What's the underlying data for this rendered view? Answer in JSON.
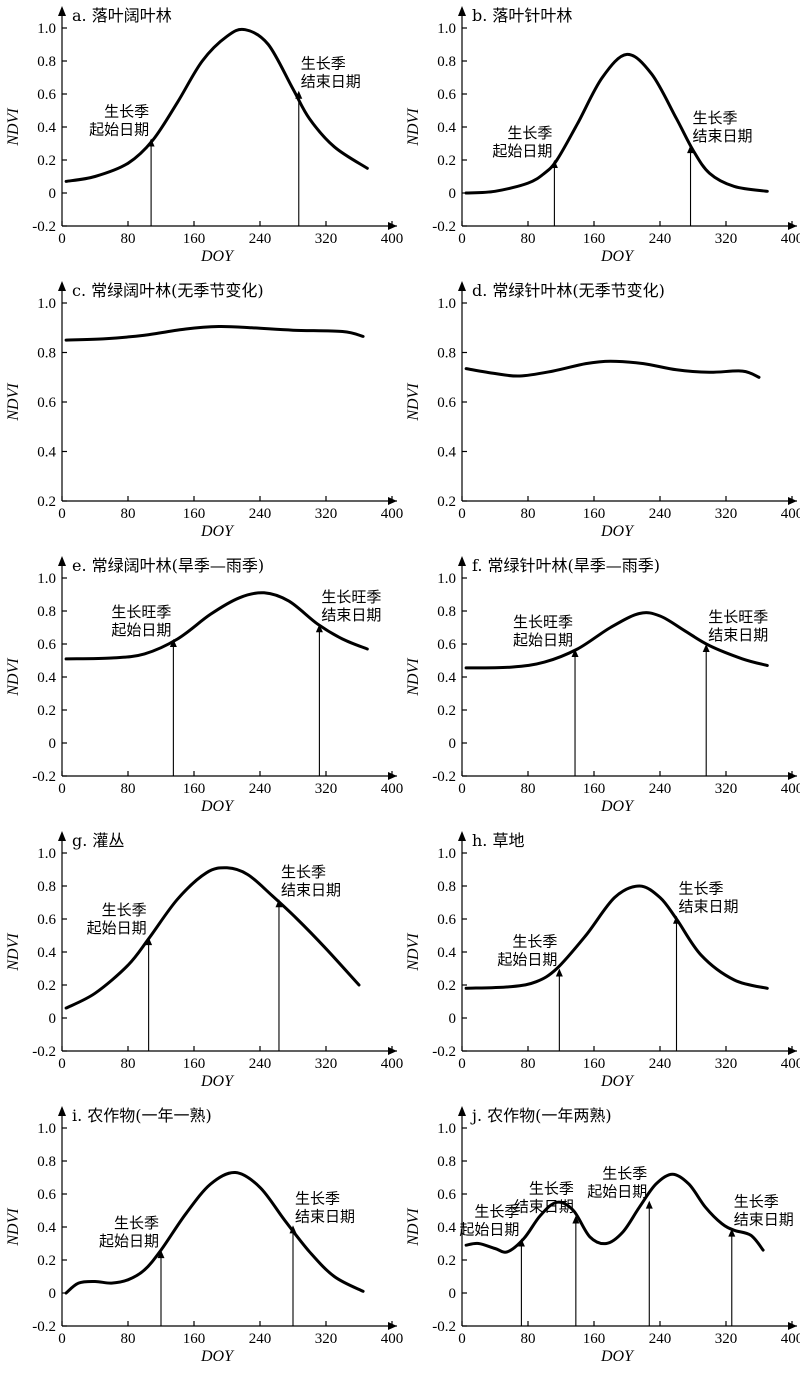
{
  "chart_data": [
    {
      "type": "line",
      "title": "a. 落叶阔叶林",
      "xlabel": "DOY",
      "ylabel": "NDVI",
      "xlim": [
        0,
        400
      ],
      "ylim": [
        -0.2,
        1.0
      ],
      "xticks": [
        0,
        80,
        160,
        240,
        320,
        400
      ],
      "yticks": [
        -0.2,
        0,
        0.2,
        0.4,
        0.6,
        0.8,
        1.0
      ],
      "series": [
        {
          "x": [
            5,
            40,
            80,
            110,
            140,
            170,
            200,
            222,
            250,
            280,
            300,
            330,
            370
          ],
          "y": [
            0.07,
            0.1,
            0.18,
            0.32,
            0.55,
            0.8,
            0.95,
            0.99,
            0.9,
            0.63,
            0.45,
            0.28,
            0.15
          ]
        }
      ],
      "annotations": [
        {
          "text": [
            "生长季",
            "起始日期"
          ],
          "x": 108,
          "y": 0.33,
          "side": "left"
        },
        {
          "text": [
            "生长季",
            "结束日期"
          ],
          "x": 287,
          "y": 0.62,
          "side": "right"
        }
      ]
    },
    {
      "type": "line",
      "title": "b. 落叶针叶林",
      "xlabel": "DOY",
      "ylabel": "NDVI",
      "xlim": [
        0,
        400
      ],
      "ylim": [
        -0.2,
        1.0
      ],
      "xticks": [
        0,
        80,
        160,
        240,
        320,
        400
      ],
      "yticks": [
        -0.2,
        0,
        0.2,
        0.4,
        0.6,
        0.8,
        1.0
      ],
      "series": [
        {
          "x": [
            5,
            40,
            80,
            100,
            115,
            140,
            170,
            200,
            230,
            260,
            280,
            300,
            330,
            370
          ],
          "y": [
            0.0,
            0.01,
            0.06,
            0.12,
            0.2,
            0.42,
            0.7,
            0.84,
            0.72,
            0.45,
            0.26,
            0.12,
            0.04,
            0.01
          ]
        }
      ],
      "annotations": [
        {
          "text": [
            "生长季",
            "起始日期"
          ],
          "x": 112,
          "y": 0.2,
          "side": "left"
        },
        {
          "text": [
            "生长季",
            "结束日期"
          ],
          "x": 277,
          "y": 0.29,
          "side": "right"
        }
      ]
    },
    {
      "type": "line",
      "title": "c. 常绿阔叶林(无季节变化)",
      "xlabel": "DOY",
      "ylabel": "NDVI",
      "xlim": [
        0,
        400
      ],
      "ylim": [
        0.2,
        1.0
      ],
      "xticks": [
        0,
        80,
        160,
        240,
        320,
        400
      ],
      "yticks": [
        0.2,
        0.4,
        0.6,
        0.8,
        1.0
      ],
      "series": [
        {
          "x": [
            5,
            50,
            100,
            150,
            190,
            230,
            280,
            340,
            365
          ],
          "y": [
            0.85,
            0.855,
            0.87,
            0.895,
            0.905,
            0.9,
            0.89,
            0.885,
            0.865
          ]
        }
      ],
      "annotations": []
    },
    {
      "type": "line",
      "title": "d. 常绿针叶林(无季节变化)",
      "xlabel": "DOY",
      "ylabel": "NDVI",
      "xlim": [
        0,
        400
      ],
      "ylim": [
        0.2,
        1.0
      ],
      "xticks": [
        0,
        80,
        160,
        240,
        320,
        400
      ],
      "yticks": [
        0.2,
        0.4,
        0.6,
        0.8,
        1.0
      ],
      "series": [
        {
          "x": [
            5,
            40,
            70,
            110,
            150,
            180,
            220,
            260,
            300,
            340,
            360
          ],
          "y": [
            0.735,
            0.715,
            0.705,
            0.725,
            0.755,
            0.765,
            0.755,
            0.73,
            0.72,
            0.725,
            0.7
          ]
        }
      ],
      "annotations": []
    },
    {
      "type": "line",
      "title": "e. 常绿阔叶林(旱季—雨季)",
      "xlabel": "DOY",
      "ylabel": "NDVI",
      "xlim": [
        0,
        400
      ],
      "ylim": [
        -0.2,
        1.0
      ],
      "xticks": [
        0,
        80,
        160,
        240,
        320,
        400
      ],
      "yticks": [
        -0.2,
        0,
        0.2,
        0.4,
        0.6,
        0.8,
        1.0
      ],
      "series": [
        {
          "x": [
            5,
            60,
            100,
            140,
            180,
            215,
            245,
            275,
            310,
            340,
            370
          ],
          "y": [
            0.51,
            0.515,
            0.54,
            0.63,
            0.78,
            0.88,
            0.91,
            0.86,
            0.72,
            0.63,
            0.57
          ]
        }
      ],
      "annotations": [
        {
          "text": [
            "生长旺季",
            "起始日期"
          ],
          "x": 135,
          "y": 0.63,
          "side": "left"
        },
        {
          "text": [
            "生长旺季",
            "结束日期"
          ],
          "x": 312,
          "y": 0.72,
          "side": "right"
        }
      ]
    },
    {
      "type": "line",
      "title": "f. 常绿针叶林(旱季—雨季)",
      "xlabel": "DOY",
      "ylabel": "NDVI",
      "xlim": [
        0,
        400
      ],
      "ylim": [
        -0.2,
        1.0
      ],
      "xticks": [
        0,
        80,
        160,
        240,
        320,
        400
      ],
      "yticks": [
        -0.2,
        0,
        0.2,
        0.4,
        0.6,
        0.8,
        1.0
      ],
      "series": [
        {
          "x": [
            5,
            60,
            100,
            140,
            180,
            215,
            240,
            270,
            300,
            340,
            370
          ],
          "y": [
            0.455,
            0.46,
            0.49,
            0.57,
            0.7,
            0.785,
            0.77,
            0.68,
            0.59,
            0.51,
            0.47
          ]
        }
      ],
      "annotations": [
        {
          "text": [
            "生长旺季",
            "起始日期"
          ],
          "x": 137,
          "y": 0.57,
          "side": "left"
        },
        {
          "text": [
            "生长旺季",
            "结束日期"
          ],
          "x": 296,
          "y": 0.6,
          "side": "right"
        }
      ]
    },
    {
      "type": "line",
      "title": "g. 灌丛",
      "xlabel": "DOY",
      "ylabel": "NDVI",
      "xlim": [
        0,
        400
      ],
      "ylim": [
        -0.2,
        1.0
      ],
      "xticks": [
        0,
        80,
        160,
        240,
        320,
        400
      ],
      "yticks": [
        -0.2,
        0,
        0.2,
        0.4,
        0.6,
        0.8,
        1.0
      ],
      "series": [
        {
          "x": [
            5,
            40,
            80,
            105,
            140,
            175,
            200,
            225,
            255,
            285,
            320,
            360
          ],
          "y": [
            0.06,
            0.15,
            0.32,
            0.48,
            0.72,
            0.88,
            0.91,
            0.87,
            0.74,
            0.6,
            0.42,
            0.2
          ]
        }
      ],
      "annotations": [
        {
          "text": [
            "生长季",
            "起始日期"
          ],
          "x": 105,
          "y": 0.49,
          "side": "left"
        },
        {
          "text": [
            "生长季",
            "结束日期"
          ],
          "x": 263,
          "y": 0.72,
          "side": "right"
        }
      ]
    },
    {
      "type": "line",
      "title": "h. 草地",
      "xlabel": "DOY",
      "ylabel": "NDVI",
      "xlim": [
        0,
        400
      ],
      "ylim": [
        -0.2,
        1.0
      ],
      "xticks": [
        0,
        80,
        160,
        240,
        320,
        400
      ],
      "yticks": [
        -0.2,
        0,
        0.2,
        0.4,
        0.6,
        0.8,
        1.0
      ],
      "series": [
        {
          "x": [
            5,
            60,
            90,
            115,
            150,
            185,
            215,
            240,
            260,
            290,
            330,
            370
          ],
          "y": [
            0.18,
            0.19,
            0.22,
            0.3,
            0.5,
            0.73,
            0.8,
            0.73,
            0.6,
            0.38,
            0.23,
            0.18
          ]
        }
      ],
      "annotations": [
        {
          "text": [
            "生长季",
            "起始日期"
          ],
          "x": 118,
          "y": 0.3,
          "side": "left"
        },
        {
          "text": [
            "生长季",
            "结束日期"
          ],
          "x": 260,
          "y": 0.62,
          "side": "right"
        }
      ]
    },
    {
      "type": "line",
      "title": "i. 农作物(一年一熟)",
      "xlabel": "DOY",
      "ylabel": "NDVI",
      "xlim": [
        0,
        400
      ],
      "ylim": [
        -0.2,
        1.0
      ],
      "xticks": [
        0,
        80,
        160,
        240,
        320,
        400
      ],
      "yticks": [
        -0.2,
        0,
        0.2,
        0.4,
        0.6,
        0.8,
        1.0
      ],
      "series": [
        {
          "x": [
            5,
            20,
            40,
            60,
            80,
            100,
            120,
            150,
            180,
            210,
            240,
            270,
            300,
            330,
            365
          ],
          "y": [
            0.0,
            0.06,
            0.07,
            0.06,
            0.08,
            0.14,
            0.26,
            0.48,
            0.66,
            0.73,
            0.64,
            0.44,
            0.25,
            0.1,
            0.01
          ]
        }
      ],
      "annotations": [
        {
          "text": [
            "生长季",
            "起始日期"
          ],
          "x": 120,
          "y": 0.26,
          "side": "left"
        },
        {
          "text": [
            "生长季",
            "结束日期"
          ],
          "x": 280,
          "y": 0.41,
          "side": "right"
        }
      ]
    },
    {
      "type": "line",
      "title": "j. 农作物(一年两熟)",
      "xlabel": "DOY",
      "ylabel": "NDVI",
      "xlim": [
        0,
        400
      ],
      "ylim": [
        -0.2,
        1.0
      ],
      "xticks": [
        0,
        80,
        160,
        240,
        320,
        400
      ],
      "yticks": [
        -0.2,
        0,
        0.2,
        0.4,
        0.6,
        0.8,
        1.0
      ],
      "series": [
        {
          "x": [
            5,
            20,
            40,
            55,
            75,
            95,
            115,
            135,
            155,
            175,
            195,
            215,
            235,
            255,
            275,
            295,
            315,
            330,
            350,
            365
          ],
          "y": [
            0.29,
            0.3,
            0.27,
            0.25,
            0.33,
            0.47,
            0.55,
            0.5,
            0.34,
            0.3,
            0.37,
            0.52,
            0.66,
            0.72,
            0.66,
            0.52,
            0.42,
            0.38,
            0.35,
            0.26
          ]
        }
      ],
      "annotations": [
        {
          "text": [
            "生长季",
            "起始日期"
          ],
          "x": 72,
          "y": 0.33,
          "side": "left"
        },
        {
          "text": [
            "生长季",
            "结束日期"
          ],
          "x": 138,
          "y": 0.47,
          "side": "left"
        },
        {
          "text": [
            "生长季",
            "起始日期"
          ],
          "x": 227,
          "y": 0.56,
          "side": "left"
        },
        {
          "text": [
            "生长季",
            "结束日期"
          ],
          "x": 327,
          "y": 0.39,
          "side": "right"
        }
      ]
    }
  ]
}
